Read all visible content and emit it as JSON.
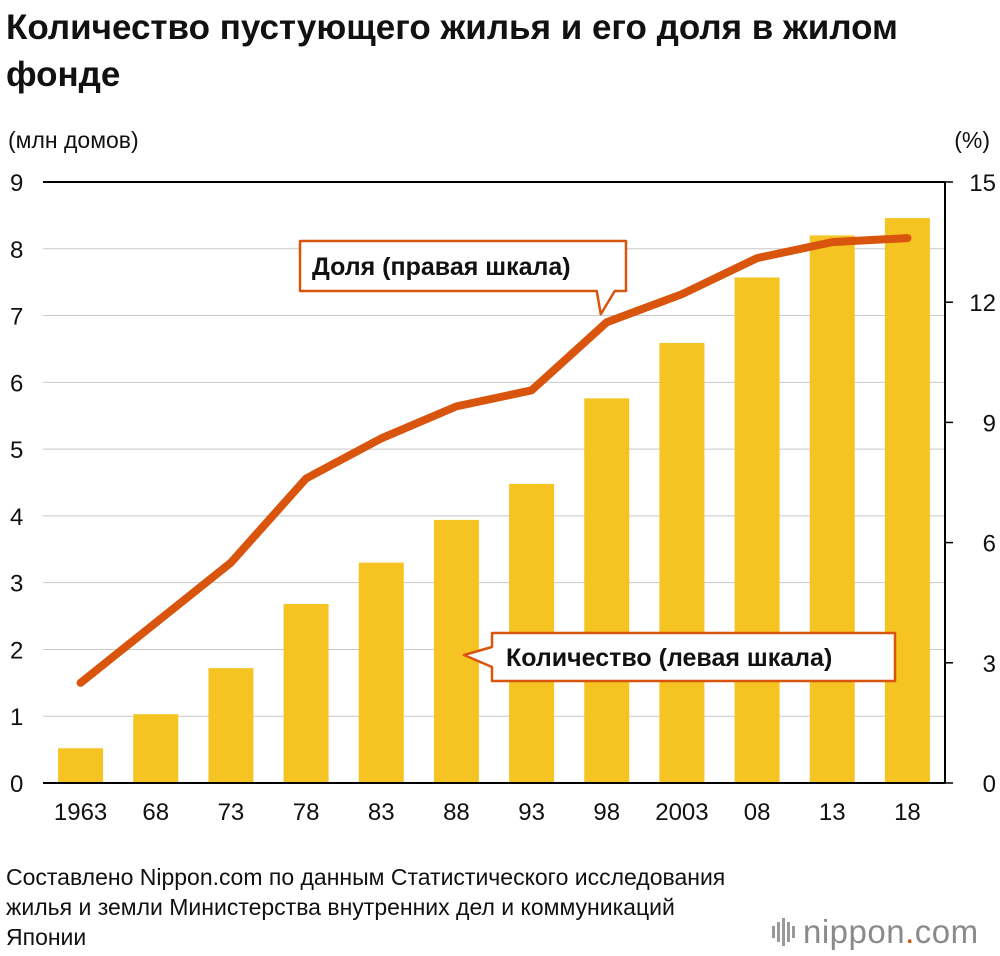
{
  "title": "Количество пустующего жилья и его доля в жилом фонде",
  "source": "Составлено Nippon.com по данным Статистического исследования жилья и земли Министерства внутренних дел и коммуникаций Японии",
  "logo": {
    "name": "nippon",
    "dot": ".",
    "suffix": "com"
  },
  "colors": {
    "bar": "#f5c422",
    "line": "#d9540d",
    "grid": "#c8c8c8",
    "axis": "#000000"
  },
  "chart_data": {
    "type": "bar",
    "categories": [
      "1963",
      "68",
      "73",
      "78",
      "83",
      "88",
      "93",
      "98",
      "2003",
      "08",
      "13",
      "18"
    ],
    "series": [
      {
        "name": "Количество (левая шкала)",
        "type": "bar",
        "axis": "left",
        "values": [
          0.52,
          1.03,
          1.72,
          2.68,
          3.3,
          3.94,
          4.48,
          5.76,
          6.59,
          7.57,
          8.2,
          8.46
        ]
      },
      {
        "name": "Доля (правая шкала)",
        "type": "line",
        "axis": "right",
        "values": [
          2.5,
          4.0,
          5.5,
          7.6,
          8.6,
          9.4,
          9.8,
          11.5,
          12.2,
          13.1,
          13.5,
          13.6
        ]
      }
    ],
    "ylabel_left": "(млн домов)",
    "ylabel_right": "(%)",
    "ylim_left": [
      0,
      9
    ],
    "ylim_right": [
      0,
      15
    ],
    "yticks_left": [
      "0",
      "1",
      "2",
      "3",
      "4",
      "5",
      "6",
      "7",
      "8",
      "9"
    ],
    "yticks_right": [
      "0",
      "3",
      "6",
      "9",
      "12",
      "15"
    ],
    "grid": true
  }
}
